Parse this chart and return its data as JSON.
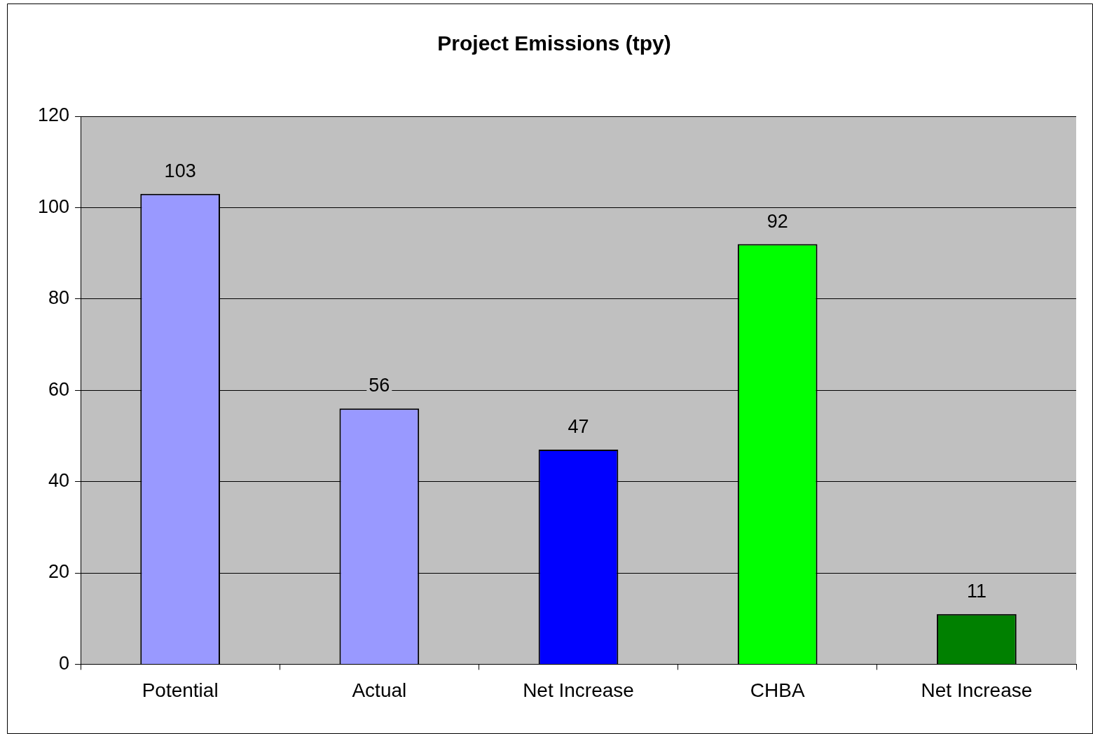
{
  "chart_data": {
    "type": "bar",
    "title": "Project Emissions (tpy)",
    "categories": [
      "Potential",
      "Actual",
      "Net Increase",
      "CHBA",
      "Net Increase"
    ],
    "values": [
      103,
      56,
      47,
      92,
      11
    ],
    "colors": [
      "#9999ff",
      "#9999ff",
      "#0000ff",
      "#00ff00",
      "#008000"
    ],
    "ylim": [
      0,
      120
    ],
    "yticks": [
      0,
      20,
      40,
      60,
      80,
      100,
      120
    ],
    "grid": "y",
    "data_labels": true
  }
}
